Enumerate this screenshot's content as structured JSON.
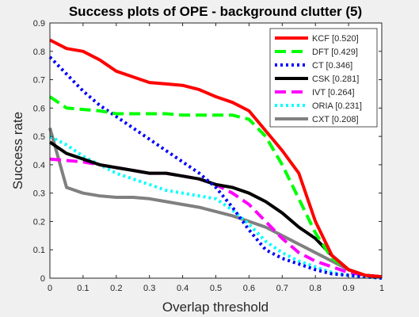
{
  "chart_data": {
    "type": "line",
    "title": "Success plots of OPE - background clutter (5)",
    "xlabel": "Overlap threshold",
    "ylabel": "Success rate",
    "xlim": [
      0,
      1
    ],
    "ylim": [
      0,
      0.9
    ],
    "x_ticks": [
      "0",
      "0.1",
      "0.2",
      "0.3",
      "0.4",
      "0.5",
      "0.6",
      "0.7",
      "0.8",
      "0.9",
      "1"
    ],
    "y_ticks": [
      "0",
      "0.1",
      "0.2",
      "0.3",
      "0.4",
      "0.5",
      "0.6",
      "0.7",
      "0.8",
      "0.9"
    ],
    "grid": false,
    "legend_position": "top-right",
    "background": "#f0f0f0",
    "x": [
      0,
      0.05,
      0.1,
      0.15,
      0.2,
      0.25,
      0.3,
      0.35,
      0.4,
      0.45,
      0.5,
      0.55,
      0.6,
      0.65,
      0.7,
      0.75,
      0.8,
      0.85,
      0.9,
      0.95,
      1
    ],
    "series": [
      {
        "name": "KCF [0.520]",
        "color": "#ff0000",
        "dash": "solid",
        "values": [
          0.84,
          0.81,
          0.8,
          0.77,
          0.73,
          0.71,
          0.69,
          0.685,
          0.68,
          0.665,
          0.64,
          0.62,
          0.59,
          0.52,
          0.45,
          0.37,
          0.2,
          0.08,
          0.03,
          0.01,
          0.005
        ]
      },
      {
        "name": "DFT [0.429]",
        "color": "#00ff00",
        "dash": "dash",
        "values": [
          0.64,
          0.6,
          0.595,
          0.59,
          0.58,
          0.58,
          0.58,
          0.58,
          0.575,
          0.575,
          0.575,
          0.575,
          0.56,
          0.5,
          0.4,
          0.28,
          0.16,
          0.07,
          0.03,
          0.01,
          0.005
        ]
      },
      {
        "name": "CT [0.346]",
        "color": "#0000ff",
        "dash": "dot",
        "values": [
          0.78,
          0.72,
          0.66,
          0.61,
          0.57,
          0.53,
          0.49,
          0.45,
          0.41,
          0.37,
          0.32,
          0.25,
          0.17,
          0.1,
          0.07,
          0.05,
          0.03,
          0.015,
          0.01,
          0.005,
          0.0
        ]
      },
      {
        "name": "CSK [0.281]",
        "color": "#000000",
        "dash": "solid",
        "values": [
          0.48,
          0.44,
          0.42,
          0.4,
          0.39,
          0.38,
          0.37,
          0.37,
          0.36,
          0.35,
          0.33,
          0.32,
          0.3,
          0.27,
          0.23,
          0.18,
          0.14,
          0.08,
          0.03,
          0.01,
          0.005
        ]
      },
      {
        "name": "IVT [0.264]",
        "color": "#ff00ff",
        "dash": "dash",
        "values": [
          0.42,
          0.415,
          0.41,
          0.4,
          0.39,
          0.38,
          0.37,
          0.37,
          0.36,
          0.35,
          0.33,
          0.3,
          0.26,
          0.2,
          0.14,
          0.09,
          0.06,
          0.04,
          0.02,
          0.01,
          0.005
        ]
      },
      {
        "name": "ORIA [0.231]",
        "color": "#00ffff",
        "dash": "dot",
        "values": [
          0.5,
          0.47,
          0.43,
          0.4,
          0.37,
          0.35,
          0.33,
          0.31,
          0.3,
          0.29,
          0.28,
          0.24,
          0.19,
          0.13,
          0.09,
          0.06,
          0.04,
          0.02,
          0.01,
          0.005,
          0.0
        ]
      },
      {
        "name": "CXT [0.208]",
        "color": "#808080",
        "dash": "solid",
        "values": [
          0.53,
          0.32,
          0.3,
          0.29,
          0.285,
          0.285,
          0.28,
          0.27,
          0.26,
          0.25,
          0.235,
          0.22,
          0.2,
          0.18,
          0.15,
          0.12,
          0.09,
          0.06,
          0.03,
          0.01,
          0.005
        ]
      }
    ]
  }
}
